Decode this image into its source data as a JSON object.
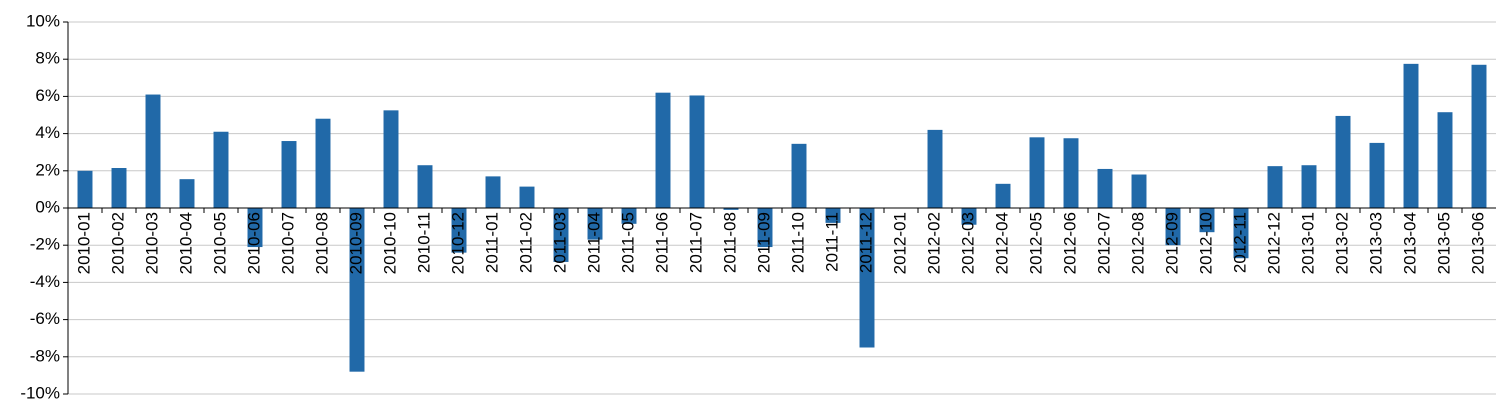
{
  "chart_data": {
    "type": "bar",
    "categories": [
      "2010-01",
      "2010-02",
      "2010-03",
      "2010-04",
      "2010-05",
      "2010-06",
      "2010-07",
      "2010-08",
      "2010-09",
      "2010-10",
      "2010-11",
      "2010-12",
      "2011-01",
      "2011-02",
      "2011-03",
      "2011-04",
      "2011-05",
      "2011-06",
      "2011-07",
      "2011-08",
      "2011-09",
      "2011-10",
      "2011-11",
      "2011-12",
      "2012-01",
      "2012-02",
      "2012-03",
      "2012-04",
      "2012-05",
      "2012-06",
      "2012-07",
      "2012-08",
      "2012-09",
      "2012-10",
      "2012-11",
      "2012-12",
      "2013-01",
      "2013-02",
      "2013-03",
      "2013-04",
      "2013-05",
      "2013-06"
    ],
    "values": [
      2.0,
      2.15,
      6.1,
      1.55,
      4.1,
      -2.1,
      3.6,
      4.8,
      -8.8,
      5.25,
      2.3,
      -2.4,
      1.7,
      1.15,
      -2.9,
      -1.7,
      -0.85,
      6.2,
      6.05,
      -0.1,
      -2.1,
      3.45,
      -0.8,
      -7.5,
      0,
      4.2,
      -0.9,
      1.3,
      3.8,
      3.75,
      2.1,
      1.8,
      -2.0,
      -1.3,
      -2.7,
      2.25,
      2.3,
      4.95,
      3.5,
      7.75,
      5.15,
      7.7
    ],
    "color": "#2169a8",
    "ylim": [
      -10,
      10
    ],
    "yticks": [
      {
        "value": -10,
        "label": "-10%"
      },
      {
        "value": -8,
        "label": "-8%"
      },
      {
        "value": -6,
        "label": "-6%"
      },
      {
        "value": -4,
        "label": "-4%"
      },
      {
        "value": -2,
        "label": "-2%"
      },
      {
        "value": 0,
        "label": "0%"
      },
      {
        "value": 2,
        "label": "2%"
      },
      {
        "value": 4,
        "label": "4%"
      },
      {
        "value": 6,
        "label": "6%"
      },
      {
        "value": 8,
        "label": "8%"
      },
      {
        "value": 10,
        "label": "10%"
      }
    ],
    "grid": true
  }
}
